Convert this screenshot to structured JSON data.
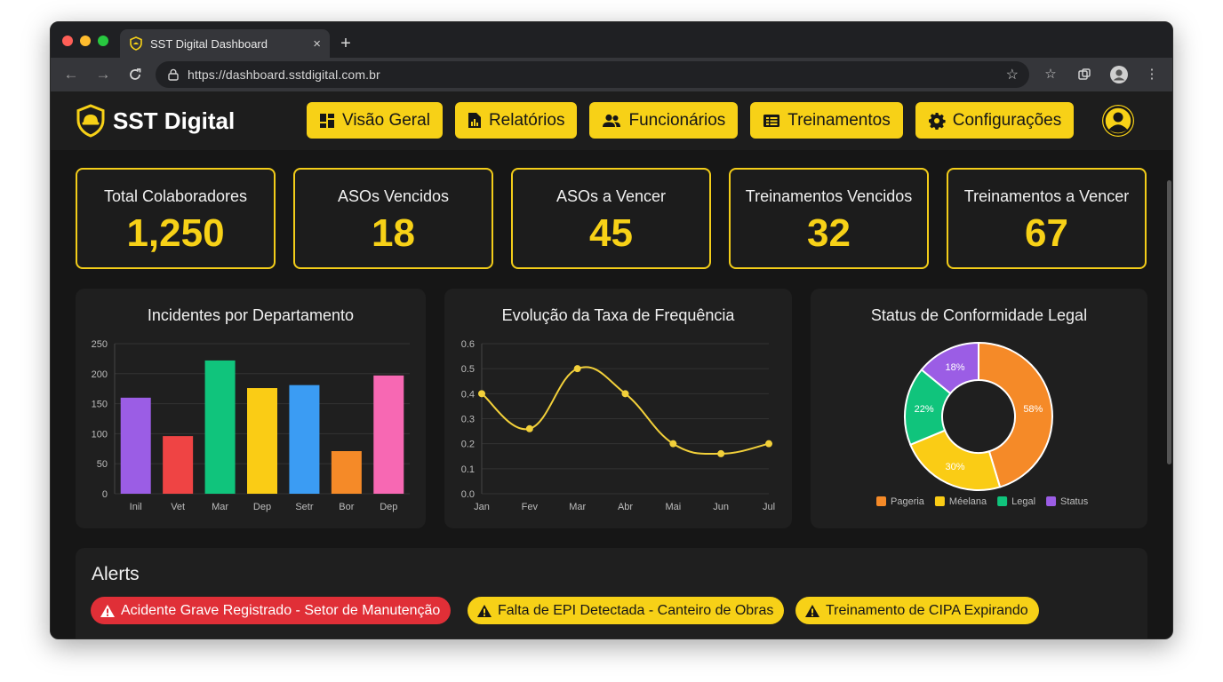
{
  "browser": {
    "tab_title": "SST Digital Dashboard",
    "tab_close": "×",
    "new_tab": "+",
    "url": "https://dashboard.sstdigital.com.br",
    "traffic_colors": [
      "#ff5f57",
      "#febc2e",
      "#28c840"
    ]
  },
  "app": {
    "brand": "SST Digital",
    "accent": "#f7d117",
    "nav": [
      {
        "label": "Visão Geral",
        "icon": "dashboard-icon"
      },
      {
        "label": "Relatórios",
        "icon": "report-icon"
      },
      {
        "label": "Funcionários",
        "icon": "people-icon"
      },
      {
        "label": "Treinamentos",
        "icon": "training-icon"
      },
      {
        "label": "Configurações",
        "icon": "gear-icon"
      }
    ]
  },
  "kpis": [
    {
      "label": "Total Colaboradores",
      "value": "1,250"
    },
    {
      "label": "ASOs Vencidos",
      "value": "18"
    },
    {
      "label": "ASOs a Vencer",
      "value": "45"
    },
    {
      "label": "Treinamentos Vencidos",
      "value": "32"
    },
    {
      "label": "Treinamentos a Vencer",
      "value": "67"
    }
  ],
  "chart_data": [
    {
      "type": "bar",
      "title": "Incidentes por Departamento",
      "categories": [
        "Inil",
        "Vet",
        "Mar",
        "Dep",
        "Setr",
        "Bor",
        "Dep"
      ],
      "values": [
        160,
        96,
        222,
        176,
        181,
        71,
        197
      ],
      "colors": [
        "#9b5de5",
        "#ef4444",
        "#10c47c",
        "#facc15",
        "#3b9cf3",
        "#f58a28",
        "#f768b3"
      ],
      "ylim": [
        0,
        250
      ],
      "yticks": [
        0,
        50,
        100,
        150,
        200,
        250
      ],
      "grid": true
    },
    {
      "type": "line",
      "title": "Evolução da Taxa de Frequência",
      "x": [
        "Jan",
        "Fev",
        "Mar",
        "Abr",
        "Mai",
        "Jun",
        "Jul"
      ],
      "values": [
        0.4,
        0.26,
        0.5,
        0.4,
        0.2,
        0.16,
        0.2
      ],
      "color": "#f2d03a",
      "ylim": [
        0,
        0.6
      ],
      "yticks": [
        "0.0",
        "0.1",
        "0.2",
        "0.3",
        "0.4",
        "0.5",
        "0.6"
      ],
      "grid": true
    },
    {
      "type": "pie",
      "title": "Status de Conformidade Legal",
      "slices": [
        {
          "label": "Pageria",
          "value": 58,
          "display": "58%",
          "color": "#f58a28"
        },
        {
          "label": "Méelana",
          "value": 30,
          "display": "30%",
          "color": "#facc15"
        },
        {
          "label": "Legal",
          "value": 22,
          "display": "22%",
          "color": "#10c47c"
        },
        {
          "label": "Status",
          "value": 18,
          "display": "18%",
          "color": "#9b5de5"
        }
      ],
      "legend": "bottom"
    }
  ],
  "alerts": {
    "title": "Alerts",
    "items": [
      {
        "text": "Acidente Grave Registrado - Setor de Manutenção",
        "level": "critical",
        "bg": "#e02f37",
        "fg": "#ffffff"
      },
      {
        "text": "Falta de EPI Detectada - Canteiro de Obras",
        "level": "warning",
        "bg": "#f7d117",
        "fg": "#161616"
      },
      {
        "text": "Treinamento de CIPA Expirando",
        "level": "warning",
        "bg": "#f7d117",
        "fg": "#161616"
      }
    ]
  }
}
